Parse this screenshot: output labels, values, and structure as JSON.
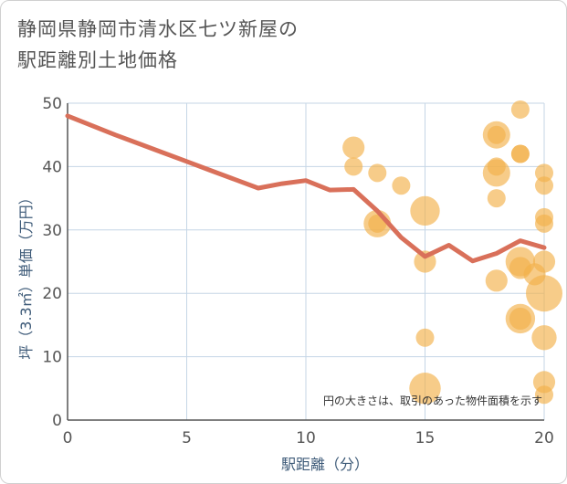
{
  "title": {
    "line1": "静岡県静岡市清水区七ツ新屋の",
    "line2": "駅距離別土地価格"
  },
  "note": "円の大きさは、取引のあった物件面積を示す",
  "colors": {
    "line": "#d9705a",
    "bubble": "#f2b04a",
    "grid": "#c5d6e6",
    "axis": "#555555"
  },
  "chart_data": {
    "type": "scatter",
    "xlabel": "駅距離（分）",
    "ylabel": "坪（3.3㎡）単価（万円）",
    "xlim": [
      0,
      20
    ],
    "ylim": [
      0,
      50
    ],
    "xticks": [
      0,
      5,
      10,
      15,
      20
    ],
    "yticks": [
      0,
      10,
      20,
      30,
      40,
      50
    ],
    "grid": true,
    "line_series": {
      "x": [
        0,
        1,
        2,
        3,
        4,
        5,
        6,
        7,
        8,
        9,
        10,
        11,
        12,
        13,
        14,
        15,
        16,
        17,
        18,
        19,
        20
      ],
      "y": [
        48,
        46.5,
        45,
        43.6,
        42.2,
        40.8,
        39.4,
        38,
        36.6,
        37.3,
        37.8,
        36.3,
        36.4,
        33,
        28.8,
        25.8,
        27.6,
        25.1,
        26.3,
        28.3,
        27.2
      ]
    },
    "bubbles": [
      {
        "x": 12,
        "y": 43,
        "size": 2
      },
      {
        "x": 12,
        "y": 40,
        "size": 1
      },
      {
        "x": 13,
        "y": 39,
        "size": 1
      },
      {
        "x": 13,
        "y": 31,
        "size": 4
      },
      {
        "x": 13,
        "y": 31,
        "size": 1
      },
      {
        "x": 14,
        "y": 37,
        "size": 1
      },
      {
        "x": 15,
        "y": 33,
        "size": 5
      },
      {
        "x": 15,
        "y": 25,
        "size": 2
      },
      {
        "x": 15,
        "y": 13,
        "size": 1
      },
      {
        "x": 15,
        "y": 5,
        "size": 6
      },
      {
        "x": 18,
        "y": 45,
        "size": 4
      },
      {
        "x": 18,
        "y": 45,
        "size": 1
      },
      {
        "x": 18,
        "y": 39,
        "size": 4
      },
      {
        "x": 18,
        "y": 40,
        "size": 1
      },
      {
        "x": 18,
        "y": 35,
        "size": 1
      },
      {
        "x": 18,
        "y": 22,
        "size": 2
      },
      {
        "x": 19,
        "y": 49,
        "size": 1
      },
      {
        "x": 19,
        "y": 42,
        "size": 1
      },
      {
        "x": 19,
        "y": 42,
        "size": 1
      },
      {
        "x": 19,
        "y": 25,
        "size": 5
      },
      {
        "x": 19,
        "y": 24,
        "size": 2
      },
      {
        "x": 19,
        "y": 16,
        "size": 5
      },
      {
        "x": 19,
        "y": 16,
        "size": 2
      },
      {
        "x": 19.6,
        "y": 23,
        "size": 2
      },
      {
        "x": 20,
        "y": 39,
        "size": 1
      },
      {
        "x": 20,
        "y": 37,
        "size": 1
      },
      {
        "x": 20,
        "y": 32,
        "size": 1
      },
      {
        "x": 20,
        "y": 31,
        "size": 1
      },
      {
        "x": 20,
        "y": 25,
        "size": 2
      },
      {
        "x": 20,
        "y": 20,
        "size": 9
      },
      {
        "x": 20,
        "y": 13,
        "size": 3
      },
      {
        "x": 20,
        "y": 6,
        "size": 2
      },
      {
        "x": 20,
        "y": 4,
        "size": 1
      }
    ]
  }
}
